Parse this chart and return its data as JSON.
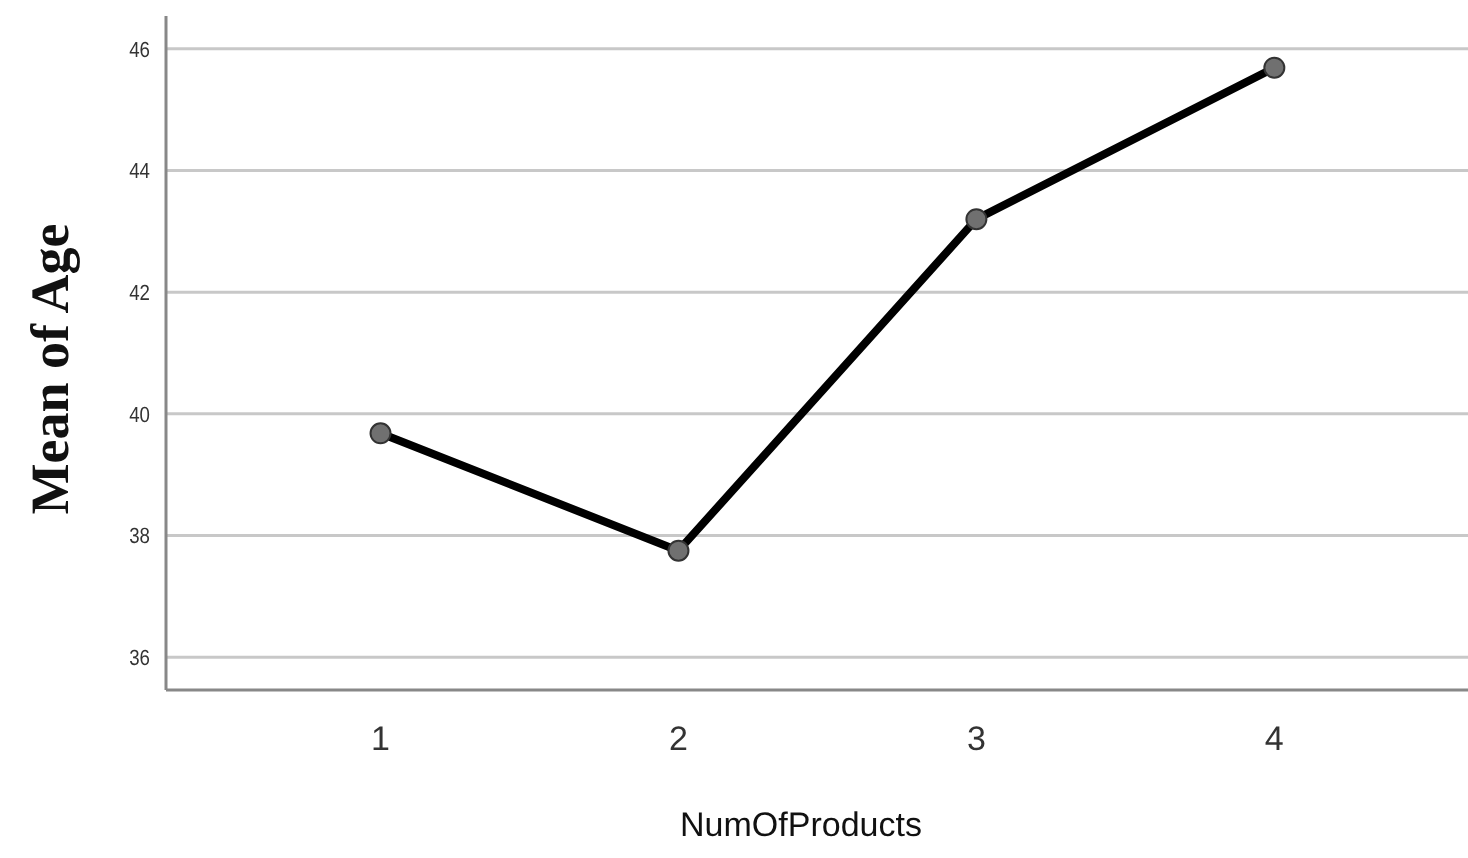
{
  "chart_data": {
    "type": "line",
    "xlabel": "NumOfProducts",
    "ylabel": "Mean of Age",
    "categories": [
      "1",
      "2",
      "3",
      "4"
    ],
    "series": [
      {
        "color": "#000000",
        "values": [
          39.68,
          37.75,
          43.2,
          45.69
        ]
      }
    ],
    "ylim": [
      35.46,
      46.54
    ],
    "yticks": [
      36,
      38,
      40,
      42,
      44,
      46
    ],
    "grid": "y",
    "marker": "circle",
    "line_style": "solid"
  }
}
